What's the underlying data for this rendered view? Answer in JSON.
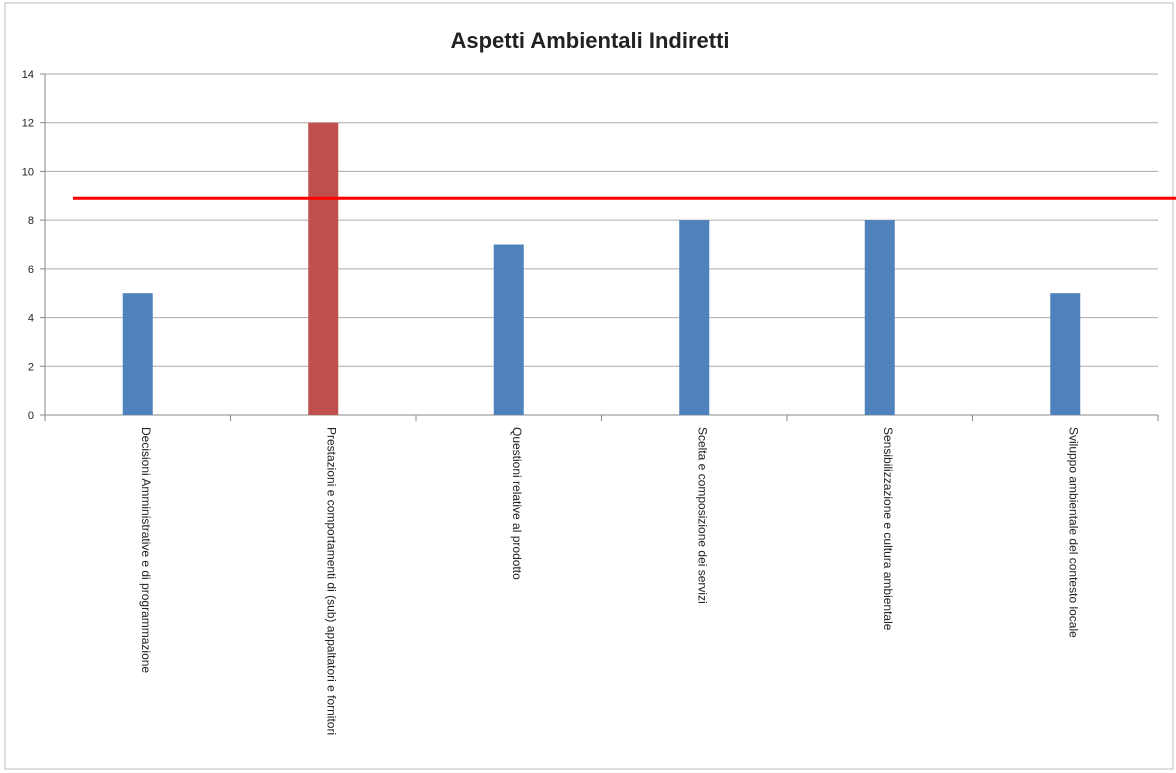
{
  "chart_data": {
    "type": "bar",
    "title": "Aspetti Ambientali Indiretti",
    "categories": [
      "Decisioni Amministrative e di programmazione",
      "Prestazioni e comportamenti di (sub) appaltatori e fornitori",
      "Questioni relative al prodotto",
      "Scelta e composizione dei servizi",
      "Sensibilizzazione e cultura ambientale",
      "Sviluppo ambientale del contesto locale"
    ],
    "values": [
      5,
      12,
      7,
      8,
      8,
      5
    ],
    "colors": [
      "#4f81bd",
      "#c0504d",
      "#4f81bd",
      "#4f81bd",
      "#4f81bd",
      "#4f81bd"
    ],
    "ylim": [
      0,
      14
    ],
    "yticks": [
      0,
      2,
      4,
      6,
      8,
      10,
      12,
      14
    ],
    "grid": true,
    "reference_line": {
      "value": 8.9,
      "color": "#ff0000"
    }
  }
}
